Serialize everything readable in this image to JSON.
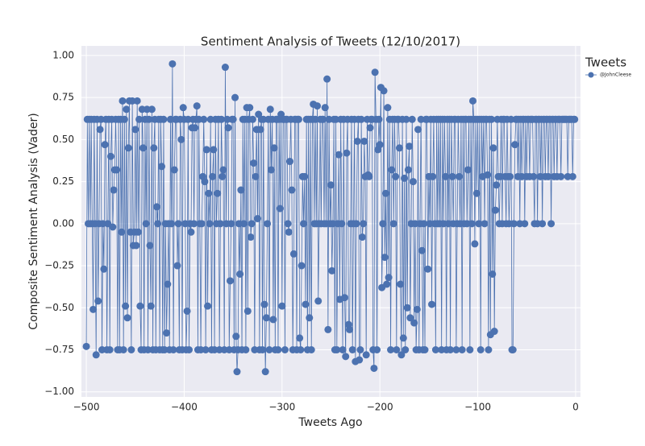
{
  "chart_data": {
    "type": "line",
    "title": "Sentiment Analysis of Tweets (12/10/2017)",
    "x_label": "Tweets Ago",
    "y_label": "Composite Sentiment Analysis (Vader)",
    "legend_title": "Tweets",
    "grid": true,
    "xlim": [
      -505,
      5
    ],
    "ylim": [
      -1.03,
      1.057
    ],
    "xticks": [
      {
        "value": -500,
        "label": "−500"
      },
      {
        "value": -400,
        "label": "−400"
      },
      {
        "value": -300,
        "label": "−300"
      },
      {
        "value": -200,
        "label": "−200"
      },
      {
        "value": -100,
        "label": "−100"
      },
      0
    ],
    "yticks": [
      {
        "value": -1,
        "label": "−1.00"
      },
      {
        "value": -0.75,
        "label": "−0.75"
      },
      {
        "value": -0.5,
        "label": "−0.50"
      },
      {
        "value": -0.25,
        "label": "−0.25"
      },
      {
        "value": 0,
        "label": "0.00"
      },
      {
        "value": 0.25,
        "label": "0.25"
      },
      {
        "value": 0.5,
        "label": "0.50"
      },
      {
        "value": 0.75,
        "label": "0.75"
      },
      {
        "value": 1,
        "label": "1.00"
      }
    ],
    "x": [
      -500,
      -499,
      -498,
      -497,
      -496,
      -495,
      -494,
      -493,
      -492,
      -491,
      -490,
      -489,
      -488,
      -487,
      -486,
      -485,
      -484,
      -483,
      -482,
      -481,
      -480,
      -479,
      -478,
      -477,
      -476,
      -475,
      -474,
      -473,
      -472,
      -471,
      -470,
      -469,
      -468,
      -467,
      -466,
      -465,
      -464,
      -463,
      -462,
      -461,
      -460,
      -459,
      -458,
      -457,
      -456,
      -455,
      -454,
      -453,
      -452,
      -451,
      -450,
      -449,
      -448,
      -447,
      -446,
      -445,
      -444,
      -443,
      -442,
      -441,
      -440,
      -439,
      -438,
      -437,
      -436,
      -435,
      -434,
      -433,
      -432,
      -431,
      -430,
      -429,
      -428,
      -427,
      -426,
      -425,
      -424,
      -423,
      -422,
      -421,
      -420,
      -419,
      -418,
      -417,
      -416,
      -415,
      -414,
      -413,
      -412,
      -411,
      -410,
      -409,
      -408,
      -407,
      -406,
      -405,
      -404,
      -403,
      -402,
      -401,
      -400,
      -399,
      -398,
      -397,
      -396,
      -395,
      -394,
      -393,
      -392,
      -391,
      -390,
      -389,
      -388,
      -387,
      -386,
      -385,
      -384,
      -383,
      -382,
      -381,
      -380,
      -379,
      -378,
      -377,
      -376,
      -375,
      -374,
      -373,
      -372,
      -371,
      -370,
      -369,
      -368,
      -367,
      -366,
      -365,
      -364,
      -363,
      -362,
      -361,
      -360,
      -359,
      -358,
      -357,
      -356,
      -355,
      -354,
      -353,
      -352,
      -351,
      -350,
      -349,
      -348,
      -347,
      -346,
      -345,
      -344,
      -343,
      -342,
      -341,
      -340,
      -339,
      -338,
      -337,
      -336,
      -335,
      -334,
      -333,
      -332,
      -331,
      -330,
      -329,
      -328,
      -327,
      -326,
      -325,
      -324,
      -323,
      -322,
      -321,
      -320,
      -319,
      -318,
      -317,
      -316,
      -315,
      -314,
      -313,
      -312,
      -311,
      -310,
      -309,
      -308,
      -307,
      -306,
      -305,
      -304,
      -303,
      -302,
      -301,
      -300,
      -299,
      -298,
      -297,
      -296,
      -295,
      -294,
      -293,
      -292,
      -291,
      -290,
      -289,
      -288,
      -287,
      -286,
      -285,
      -284,
      -283,
      -282,
      -281,
      -280,
      -279,
      -278,
      -277,
      -276,
      -275,
      -274,
      -273,
      -272,
      -271,
      -270,
      -269,
      -268,
      -267,
      -266,
      -265,
      -264,
      -263,
      -262,
      -261,
      -260,
      -259,
      -258,
      -257,
      -256,
      -255,
      -254,
      -253,
      -252,
      -251,
      -250,
      -249,
      -248,
      -247,
      -246,
      -245,
      -244,
      -243,
      -242,
      -241,
      -240,
      -239,
      -238,
      -237,
      -236,
      -235,
      -234,
      -233,
      -232,
      -231,
      -230,
      -229,
      -228,
      -227,
      -226,
      -225,
      -224,
      -223,
      -222,
      -221,
      -220,
      -219,
      -218,
      -217,
      -216,
      -215,
      -214,
      -213,
      -212,
      -211,
      -210,
      -209,
      -208,
      -207,
      -206,
      -205,
      -204,
      -203,
      -202,
      -201,
      -200,
      -199,
      -198,
      -197,
      -196,
      -195,
      -194,
      -193,
      -192,
      -191,
      -190,
      -189,
      -188,
      -187,
      -186,
      -185,
      -184,
      -183,
      -182,
      -181,
      -180,
      -179,
      -178,
      -177,
      -176,
      -175,
      -174,
      -173,
      -172,
      -171,
      -170,
      -169,
      -168,
      -167,
      -166,
      -165,
      -164,
      -163,
      -162,
      -161,
      -160,
      -159,
      -158,
      -157,
      -156,
      -155,
      -154,
      -153,
      -152,
      -151,
      -150,
      -149,
      -148,
      -147,
      -146,
      -145,
      -144,
      -143,
      -142,
      -141,
      -140,
      -139,
      -138,
      -137,
      -136,
      -135,
      -134,
      -133,
      -132,
      -131,
      -130,
      -129,
      -128,
      -127,
      -126,
      -125,
      -124,
      -123,
      -122,
      -121,
      -120,
      -119,
      -118,
      -117,
      -116,
      -115,
      -114,
      -113,
      -112,
      -111,
      -110,
      -109,
      -108,
      -107,
      -106,
      -105,
      -104,
      -103,
      -102,
      -101,
      -100,
      -99,
      -98,
      -97,
      -96,
      -95,
      -94,
      -93,
      -92,
      -91,
      -90,
      -89,
      -88,
      -87,
      -86,
      -85,
      -84,
      -83,
      -82,
      -81,
      -80,
      -79,
      -78,
      -77,
      -76,
      -75,
      -74,
      -73,
      -72,
      -71,
      -70,
      -69,
      -68,
      -67,
      -66,
      -65,
      -64,
      -63,
      -62,
      -61,
      -60,
      -59,
      -58,
      -57,
      -56,
      -55,
      -54,
      -53,
      -52,
      -51,
      -50,
      -49,
      -48,
      -47,
      -46,
      -45,
      -44,
      -43,
      -42,
      -41,
      -40,
      -39,
      -38,
      -37,
      -36,
      -35,
      -34,
      -33,
      -32,
      -31,
      -30,
      -29,
      -28,
      -27,
      -26,
      -25,
      -24,
      -23,
      -22,
      -21,
      -20,
      -19,
      -18,
      -17,
      -16,
      -15,
      -14,
      -13,
      -12,
      -11,
      -10,
      -9,
      -8,
      -7,
      -6,
      -5,
      -4,
      -3,
      -2,
      -1
    ],
    "series": [
      {
        "name": "@JohnCleese",
        "color": "#4c72b0",
        "values": [
          -0.73,
          0.62,
          0,
          0.62,
          0,
          0.62,
          0,
          -0.51,
          0.62,
          0,
          -0.78,
          0.62,
          -0.46,
          0,
          0.56,
          0.62,
          -0.75,
          0,
          -0.27,
          0.47,
          0.62,
          -0.75,
          0,
          0.62,
          -0.75,
          0.4,
          0.62,
          -0.02,
          0.2,
          0.32,
          0.62,
          0.32,
          -0.75,
          0.62,
          -0.75,
          0.62,
          -0.05,
          0.73,
          -0.75,
          0.62,
          -0.49,
          0.68,
          -0.56,
          0.45,
          0.73,
          -0.05,
          -0.75,
          0.73,
          -0.13,
          -0.05,
          0.56,
          -0.13,
          0.73,
          -0.05,
          0.62,
          -0.49,
          -0.75,
          0.68,
          0.45,
          -0.75,
          0.62,
          0,
          0.68,
          -0.75,
          0.62,
          -0.13,
          -0.49,
          0.68,
          -0.75,
          0.45,
          0.62,
          -0.75,
          0.1,
          0,
          0.62,
          -0.75,
          0.62,
          0.34,
          -0.75,
          0.62,
          -0.75,
          0,
          -0.65,
          -0.36,
          0,
          -0.75,
          0.62,
          0,
          0.95,
          -0.75,
          0.32,
          0.62,
          0.62,
          -0.25,
          0,
          -0.75,
          0.62,
          0.5,
          -0.75,
          0.69,
          0.62,
          0,
          -0.75,
          -0.52,
          0.62,
          -0.75,
          0,
          -0.05,
          0.57,
          0.62,
          0,
          0.57,
          0.62,
          0.7,
          -0.75,
          0.62,
          0,
          -0.75,
          0,
          0.28,
          0.62,
          0.25,
          -0.75,
          0.44,
          -0.49,
          0.18,
          0,
          0.62,
          -0.75,
          0.28,
          0.44,
          -0.75,
          0.62,
          0,
          0.18,
          0.62,
          -0.75,
          0,
          0.62,
          0.28,
          0.32,
          -0.75,
          0.93,
          0,
          0.62,
          0.57,
          -0.75,
          -0.34,
          0,
          0.62,
          0.62,
          -0.75,
          0.75,
          -0.67,
          -0.88,
          -0.75,
          0,
          -0.3,
          0.2,
          -0.75,
          0.62,
          0,
          0.62,
          -0.75,
          0.69,
          -0.52,
          0.62,
          0.69,
          -0.08,
          0,
          0.62,
          0.36,
          -0.75,
          0.28,
          0.56,
          0.03,
          0.65,
          -0.75,
          0.56,
          0.62,
          -0.75,
          0.62,
          -0.48,
          -0.88,
          -0.56,
          0,
          0.62,
          -0.75,
          0.68,
          0.32,
          0.62,
          -0.57,
          0.45,
          -0.75,
          0.62,
          0.62,
          -0.75,
          0.62,
          0.09,
          0.65,
          -0.49,
          0.62,
          0.62,
          -0.75,
          0.62,
          0.62,
          0,
          -0.05,
          0.37,
          0.62,
          0.2,
          -0.75,
          -0.18,
          0.62,
          0.62,
          -0.75,
          0.62,
          0.62,
          -0.68,
          -0.75,
          -0.25,
          0.28,
          0,
          0.28,
          -0.48,
          0.62,
          -0.75,
          0.62,
          -0.56,
          0.62,
          -0.75,
          0.62,
          0.71,
          0,
          0.62,
          0,
          0.7,
          -0.46,
          0,
          0.62,
          0,
          0.62,
          0.62,
          0,
          0.69,
          0,
          0.86,
          -0.63,
          0.62,
          0,
          0.23,
          -0.28,
          0,
          0.62,
          -0.75,
          0.62,
          -0.75,
          0,
          0.41,
          -0.45,
          0.62,
          0,
          -0.75,
          0.62,
          -0.44,
          -0.79,
          0.42,
          0.62,
          -0.6,
          -0.63,
          0,
          0.62,
          -0.75,
          0,
          0.62,
          -0.82,
          0,
          0.49,
          0.62,
          -0.81,
          -0.75,
          0.62,
          -0.08,
          0,
          0.49,
          0.28,
          -0.78,
          0.62,
          0.29,
          0.28,
          0.57,
          0.62,
          0.62,
          -0.75,
          -0.86,
          0.9,
          0.62,
          -0.75,
          0.44,
          0.62,
          0.47,
          0.81,
          -0.38,
          0,
          0.79,
          -0.2,
          0.18,
          -0.36,
          0.69,
          -0.32,
          0.62,
          -0.75,
          0.32,
          0.62,
          0,
          0.62,
          0.28,
          -0.75,
          0.62,
          0.62,
          0.45,
          -0.36,
          -0.78,
          0.62,
          -0.68,
          0.27,
          -0.75,
          0.62,
          -0.5,
          0.32,
          0.46,
          -0.56,
          0,
          0.62,
          0.25,
          -0.59,
          0,
          -0.75,
          -0.51,
          0.56,
          -0.75,
          0,
          0.62,
          -0.16,
          -0.75,
          0,
          -0.75,
          0.62,
          0.62,
          -0.27,
          0.28,
          0,
          0.62,
          -0.48,
          0.28,
          0.62,
          0,
          -0.75,
          0.62,
          0,
          0.62,
          0,
          0.62,
          -0.75,
          0.62,
          0,
          0.62,
          0.28,
          -0.75,
          0.62,
          0,
          0.62,
          -0.75,
          0.62,
          0.28,
          0,
          0.62,
          0.62,
          -0.75,
          0,
          0.62,
          0.28,
          0,
          0.62,
          -0.75,
          0.62,
          0,
          0.62,
          0.62,
          0,
          0.32,
          0.62,
          -0.75,
          0.62,
          0,
          0.73,
          0.62,
          -0.12,
          0.62,
          0.18,
          0.62,
          0,
          0.62,
          -0.75,
          0.62,
          0.28,
          0.62,
          0,
          0.62,
          0.62,
          0.29,
          -0.75,
          0.62,
          -0.66,
          0.62,
          -0.3,
          0.45,
          -0.64,
          0.08,
          0.23,
          0.62,
          0.28,
          0,
          0.28,
          0.62,
          0,
          0.62,
          0.62,
          0.28,
          0,
          0.62,
          0.28,
          0,
          0.28,
          0.62,
          -0.75,
          -0.75,
          0,
          0.47,
          0.62,
          0.62,
          0.28,
          0.62,
          0,
          0.62,
          0.28,
          0.62,
          0.62,
          0,
          0.62,
          0.28,
          0.62,
          0.62,
          0.28,
          0.62,
          0.62,
          0.62,
          0.28,
          0,
          0.62,
          0.62,
          0,
          0.62,
          0.62,
          0.28,
          0.62,
          0,
          0.62,
          0.62,
          0.28,
          0.62,
          0.62,
          0.28,
          0.62,
          0.62,
          0,
          0.62,
          0.62,
          0.28,
          0.62,
          0.62,
          0.28,
          0.62,
          0.62,
          0.62,
          0.28,
          0.62,
          0.62,
          0.62,
          0.62,
          0.62,
          0.62,
          0.28,
          0.62,
          0.62,
          0.62,
          0.62,
          0.28,
          0.62,
          0.62
        ]
      }
    ]
  }
}
